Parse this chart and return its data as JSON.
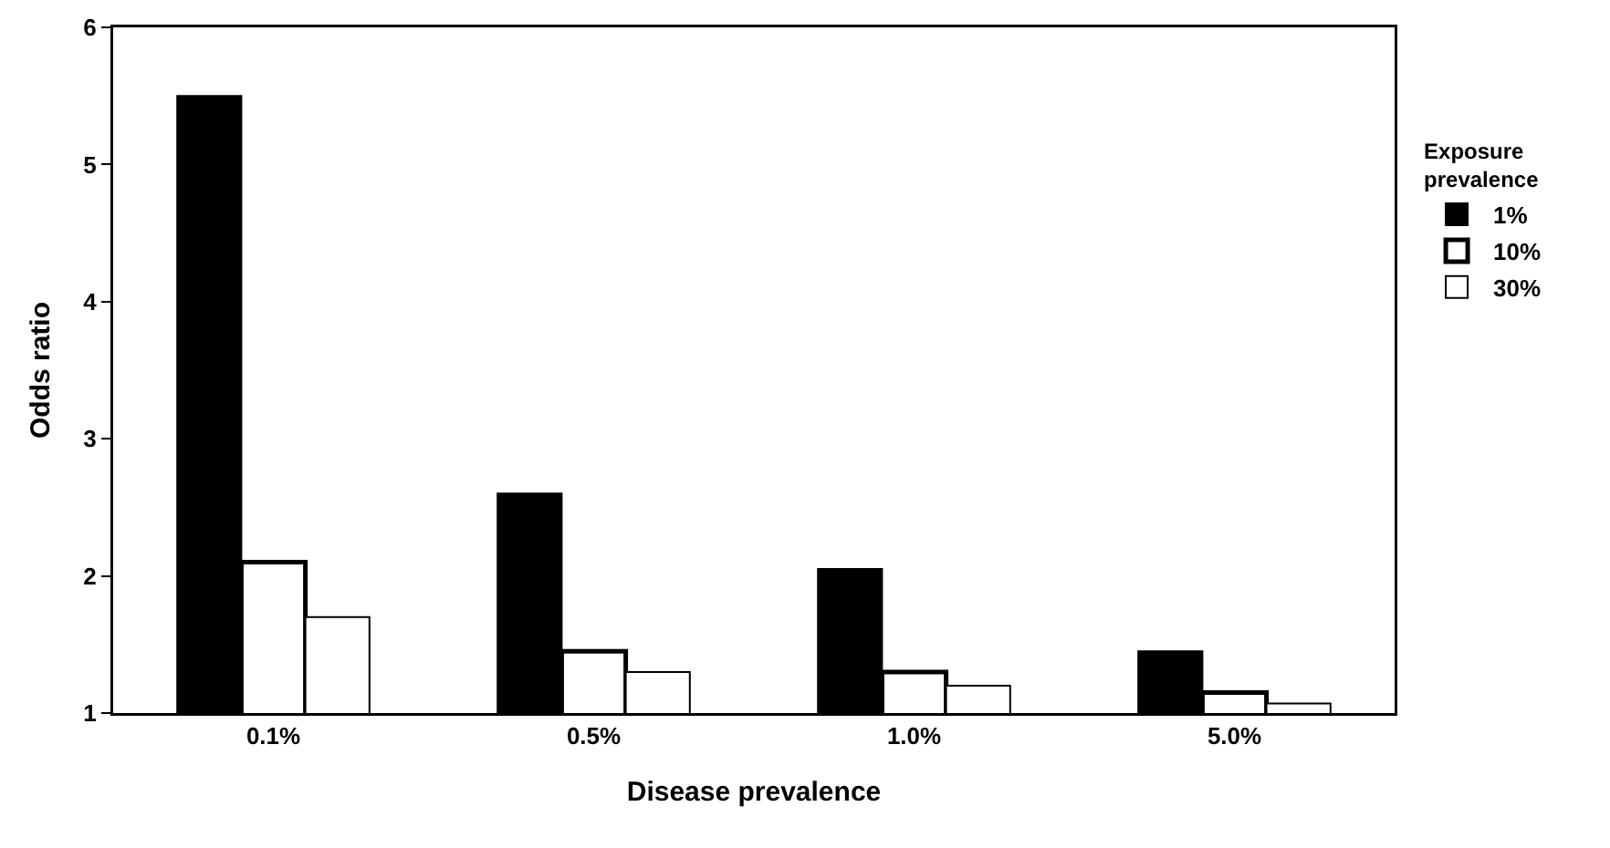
{
  "chart_data": {
    "type": "bar",
    "xlabel": "Disease prevalence",
    "ylabel": "Odds ratio",
    "legend_title": "Exposure prevalence",
    "categories": [
      "0.1%",
      "0.5%",
      "1.0%",
      "5.0%"
    ],
    "series": [
      {
        "name": "1%",
        "color": "#000000",
        "values": [
          5.5,
          2.6,
          2.05,
          1.45
        ]
      },
      {
        "name": "10%",
        "color": "#ffffff",
        "values": [
          2.1,
          1.45,
          1.3,
          1.15
        ]
      },
      {
        "name": "30%",
        "color": "#ffffff",
        "values": [
          1.7,
          1.3,
          1.2,
          1.07
        ]
      }
    ],
    "ylim": [
      1,
      6
    ],
    "yticks": [
      1,
      2,
      3,
      4,
      5,
      6
    ],
    "grid": false,
    "legend": "right"
  }
}
